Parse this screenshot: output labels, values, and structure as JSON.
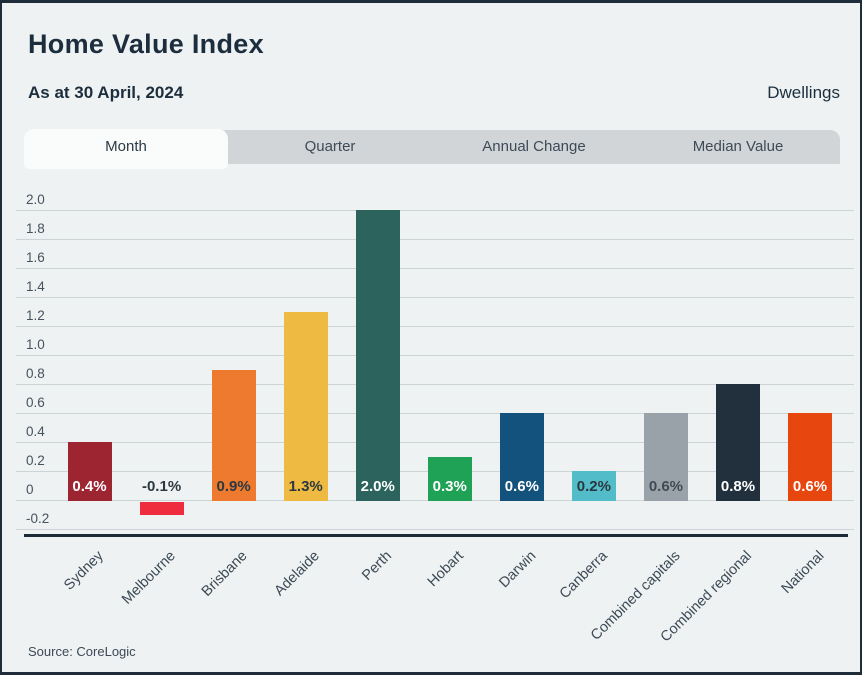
{
  "header": {
    "title": "Home Value Index",
    "subtitle": "As at 30 April, 2024",
    "right_label": "Dwellings"
  },
  "tabs": [
    {
      "label": "Month",
      "active": true
    },
    {
      "label": "Quarter",
      "active": false
    },
    {
      "label": "Annual Change",
      "active": false
    },
    {
      "label": "Median Value",
      "active": false
    }
  ],
  "footer": {
    "source": "Source: CoreLogic"
  },
  "colors": {
    "background": "#eef2f2",
    "frame": "#1f2d3b",
    "tab_strip": "#d2d5d7",
    "tab_active": "#fafcfc",
    "gridline": "#cdd4d6",
    "axis_line": "#1d2b39",
    "heading_text": "#1c2e3e"
  },
  "chart_data": {
    "type": "bar",
    "title": "Home Value Index",
    "subtitle": "As at 30 April, 2024",
    "series_label": "Dwellings",
    "categories": [
      "Sydney",
      "Melbourne",
      "Brisbane",
      "Adelaide",
      "Perth",
      "Hobart",
      "Darwin",
      "Canberra",
      "Combined capitals",
      "Combined regional",
      "National"
    ],
    "values": [
      0.4,
      -0.1,
      0.9,
      1.3,
      2.0,
      0.3,
      0.6,
      0.2,
      0.6,
      0.8,
      0.6
    ],
    "bar_labels": [
      "0.4%",
      "-0.1%",
      "0.9%",
      "1.3%",
      "2.0%",
      "0.3%",
      "0.6%",
      "0.2%",
      "0.6%",
      "0.8%",
      "0.6%"
    ],
    "bar_colors": [
      "#9c2531",
      "#ee2c3d",
      "#ed7a2e",
      "#efba42",
      "#2c635c",
      "#1fa256",
      "#14527e",
      "#52bdc9",
      "#9aa2a9",
      "#222f3d",
      "#e8460f"
    ],
    "label_colors": [
      "#ffffff",
      "#2b3840",
      "#2b3840",
      "#2b3840",
      "#ffffff",
      "#ffffff",
      "#ffffff",
      "#2b3840",
      "#3f4b55",
      "#ffffff",
      "#ffffff"
    ],
    "unit": "%",
    "ylim": [
      -0.2,
      2.0
    ],
    "yticks": [
      "2.0",
      "1.8",
      "1.6",
      "1.4",
      "1.2",
      "1.0",
      "0.8",
      "0.6",
      "0.4",
      "0.2",
      "0",
      "-0.2"
    ],
    "grid": true,
    "legend": false,
    "xlabel": "",
    "ylabel": ""
  }
}
